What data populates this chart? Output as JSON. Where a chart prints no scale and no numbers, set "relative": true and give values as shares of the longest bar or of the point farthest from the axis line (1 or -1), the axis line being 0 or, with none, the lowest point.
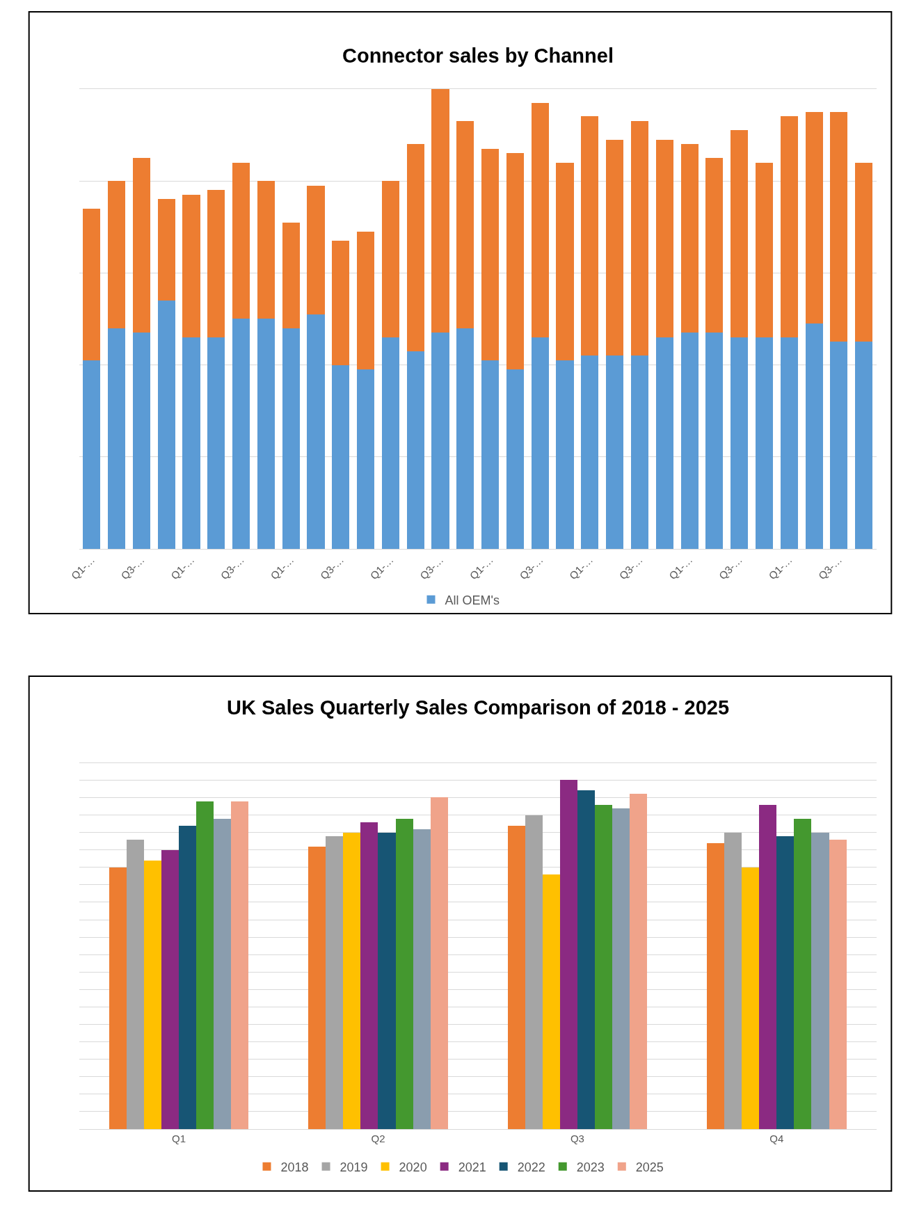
{
  "chart_data": [
    {
      "type": "bar",
      "title": "Connector sales by Channel",
      "relative": true,
      "stacked": true,
      "grid": "y",
      "legend": "bottom",
      "categories": [
        "Q1-…",
        null,
        "Q3-…",
        null,
        "Q1-…",
        null,
        "Q3-…",
        null,
        "Q1-…",
        null,
        "Q3-…",
        null,
        "Q1-…",
        null,
        "Q3-…",
        null,
        "Q1-…",
        null,
        "Q3-…",
        null,
        "Q1-…",
        null,
        "Q3-…",
        null,
        "Q1-…",
        null,
        "Q3-…",
        null,
        "Q1-…",
        null,
        "Q3-…",
        null
      ],
      "series": [
        {
          "name": "All OEM's",
          "color": "#5b9bd5",
          "values": [
            0.41,
            0.48,
            0.47,
            0.54,
            0.46,
            0.46,
            0.5,
            0.5,
            0.48,
            0.51,
            0.4,
            0.39,
            0.46,
            0.43,
            0.47,
            0.48,
            0.41,
            0.39,
            0.46,
            0.41,
            0.42,
            0.42,
            0.42,
            0.46,
            0.47,
            0.47,
            0.46,
            0.46,
            0.46,
            0.49,
            0.45,
            0.45
          ]
        },
        {
          "color": "#ed7d31",
          "values": [
            0.33,
            0.32,
            0.38,
            0.22,
            0.31,
            0.32,
            0.34,
            0.3,
            0.23,
            0.28,
            0.27,
            0.3,
            0.34,
            0.45,
            0.53,
            0.45,
            0.46,
            0.47,
            0.51,
            0.43,
            0.52,
            0.47,
            0.51,
            0.43,
            0.41,
            0.38,
            0.45,
            0.38,
            0.48,
            0.46,
            0.5,
            0.39
          ]
        }
      ]
    },
    {
      "type": "bar",
      "title": "UK Sales Quarterly Sales Comparison of 2018 - 2025",
      "relative": true,
      "grid": "y",
      "legend": "bottom",
      "categories": [
        "Q1",
        "Q2",
        "Q3",
        "Q4"
      ],
      "series": [
        {
          "name": "2018",
          "color": "#ed7d31",
          "values": [
            0.75,
            0.81,
            0.87,
            0.82
          ]
        },
        {
          "name": "2019",
          "color": "#a5a5a5",
          "values": [
            0.83,
            0.84,
            0.9,
            0.85
          ]
        },
        {
          "name": "2020",
          "color": "#ffc000",
          "values": [
            0.77,
            0.85,
            0.73,
            0.75
          ]
        },
        {
          "name": "2021",
          "color": "#8b2a82",
          "values": [
            0.8,
            0.88,
            1.0,
            0.93
          ]
        },
        {
          "name": "2022",
          "color": "#175574",
          "values": [
            0.87,
            0.85,
            0.97,
            0.84
          ]
        },
        {
          "name": "2023",
          "color": "#44982f",
          "values": [
            0.94,
            0.89,
            0.93,
            0.89
          ]
        },
        {
          "color": "#8a9dae",
          "values": [
            0.89,
            0.86,
            0.92,
            0.85
          ]
        },
        {
          "name": "2025",
          "color": "#f0a38a",
          "values": [
            0.94,
            0.95,
            0.96,
            0.83
          ]
        }
      ]
    }
  ]
}
